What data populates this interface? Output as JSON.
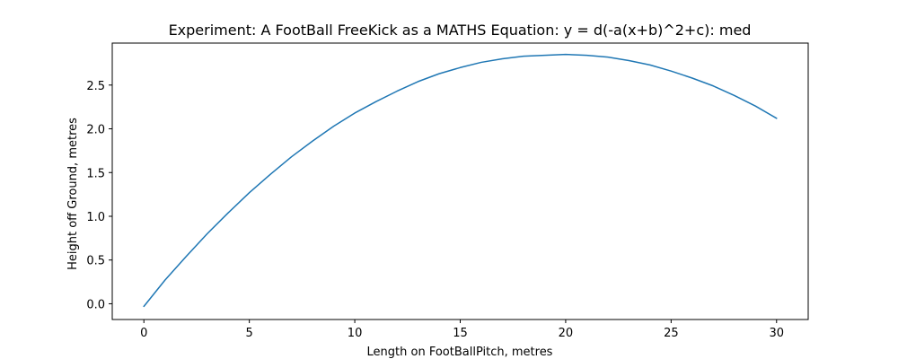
{
  "chart_data": {
    "type": "line",
    "title": "Experiment: A FootBall FreeKick as a MATHS Equation: y = d(-a(x+b)^2+c): med",
    "xlabel": "Length on FootBallPitch, metres",
    "ylabel": "Height off Ground, metres",
    "xlim": [
      -1.5,
      31.5
    ],
    "ylim": [
      -0.18,
      2.98
    ],
    "xticks": [
      0,
      5,
      10,
      15,
      20,
      25,
      30
    ],
    "xtick_labels": [
      "0",
      "5",
      "10",
      "15",
      "20",
      "25",
      "30"
    ],
    "yticks": [
      0.0,
      0.5,
      1.0,
      1.5,
      2.0,
      2.5
    ],
    "ytick_labels": [
      "0.0",
      "0.5",
      "1.0",
      "1.5",
      "2.0",
      "2.5"
    ],
    "grid": false,
    "series": [
      {
        "color": "#1f77b4",
        "x": [
          0,
          1,
          2,
          3,
          4,
          5,
          6,
          7,
          8,
          9,
          10,
          11,
          12,
          13,
          14,
          15,
          16,
          17,
          18,
          19,
          20,
          21,
          22,
          23,
          24,
          25,
          26,
          27,
          28,
          29,
          30
        ],
        "y": [
          -0.03,
          0.27,
          0.54,
          0.8,
          1.04,
          1.27,
          1.48,
          1.68,
          1.86,
          2.03,
          2.18,
          2.31,
          2.43,
          2.54,
          2.63,
          2.7,
          2.76,
          2.8,
          2.83,
          2.84,
          2.85,
          2.84,
          2.82,
          2.78,
          2.73,
          2.66,
          2.58,
          2.49,
          2.38,
          2.26,
          2.12
        ]
      }
    ]
  }
}
